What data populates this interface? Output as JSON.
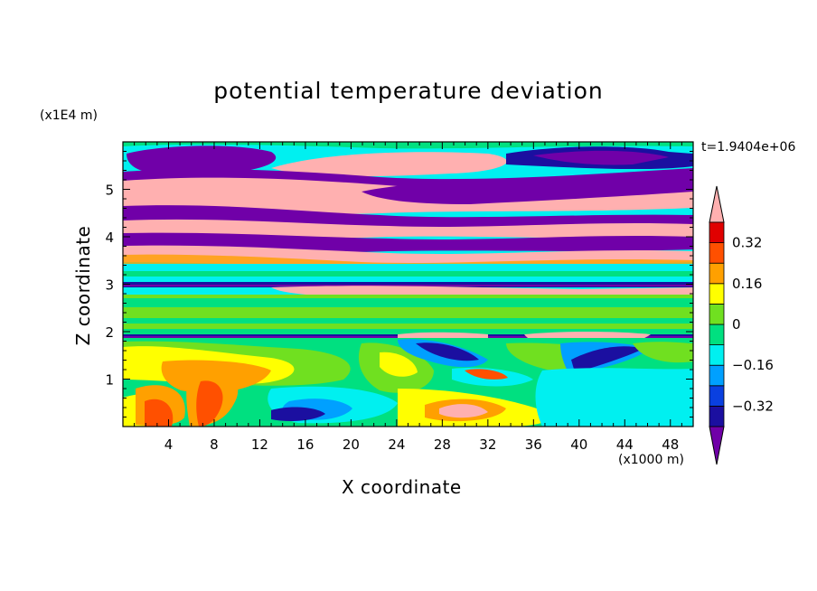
{
  "chart_data": {
    "type": "heatmap",
    "title": "potential temperature deviation",
    "xlabel": "X coordinate",
    "ylabel": "Z coordinate",
    "x_unit": "(x1000 m)",
    "y_unit": "(x1E4 m)",
    "time_label": "t=1.9404e+06",
    "xlim": [
      0,
      50
    ],
    "ylim": [
      0,
      6
    ],
    "x_ticks": [
      "4",
      "8",
      "12",
      "16",
      "20",
      "24",
      "28",
      "32",
      "36",
      "40",
      "44",
      "48"
    ],
    "y_ticks": [
      "1",
      "2",
      "3",
      "4",
      "5"
    ],
    "colorbar": {
      "levels": [
        -0.4,
        -0.32,
        -0.24,
        -0.16,
        -0.08,
        0,
        0.08,
        0.16,
        0.24,
        0.32,
        0.4
      ],
      "labels": [
        "0.32",
        "0.16",
        "0",
        "-0.16",
        "-0.32"
      ],
      "colors": [
        "#7000a8",
        "#1b0fa0",
        "#0a40e0",
        "#00a0ff",
        "#00f0f0",
        "#00e080",
        "#70e020",
        "#ffff00",
        "#ffa000",
        "#ff5000",
        "#e00000",
        "#ffb0b0"
      ],
      "extend": "both"
    },
    "regions": [
      {
        "desc": "upper layer",
        "z_range": [
          3.5,
          6
        ],
        "pattern": "alternating purple and pink horizontal bands"
      },
      {
        "desc": "mid layer",
        "z_range": [
          2,
          3.5
        ],
        "pattern": "cyan/green bands, thin dark blue lines near z=3 and z=1.9"
      },
      {
        "desc": "lower layer",
        "z_range": [
          0,
          1.9
        ],
        "pattern": "mixed red/yellow (x 2-10), green/cyan, blue lobes near x=16 and x=28"
      }
    ]
  }
}
